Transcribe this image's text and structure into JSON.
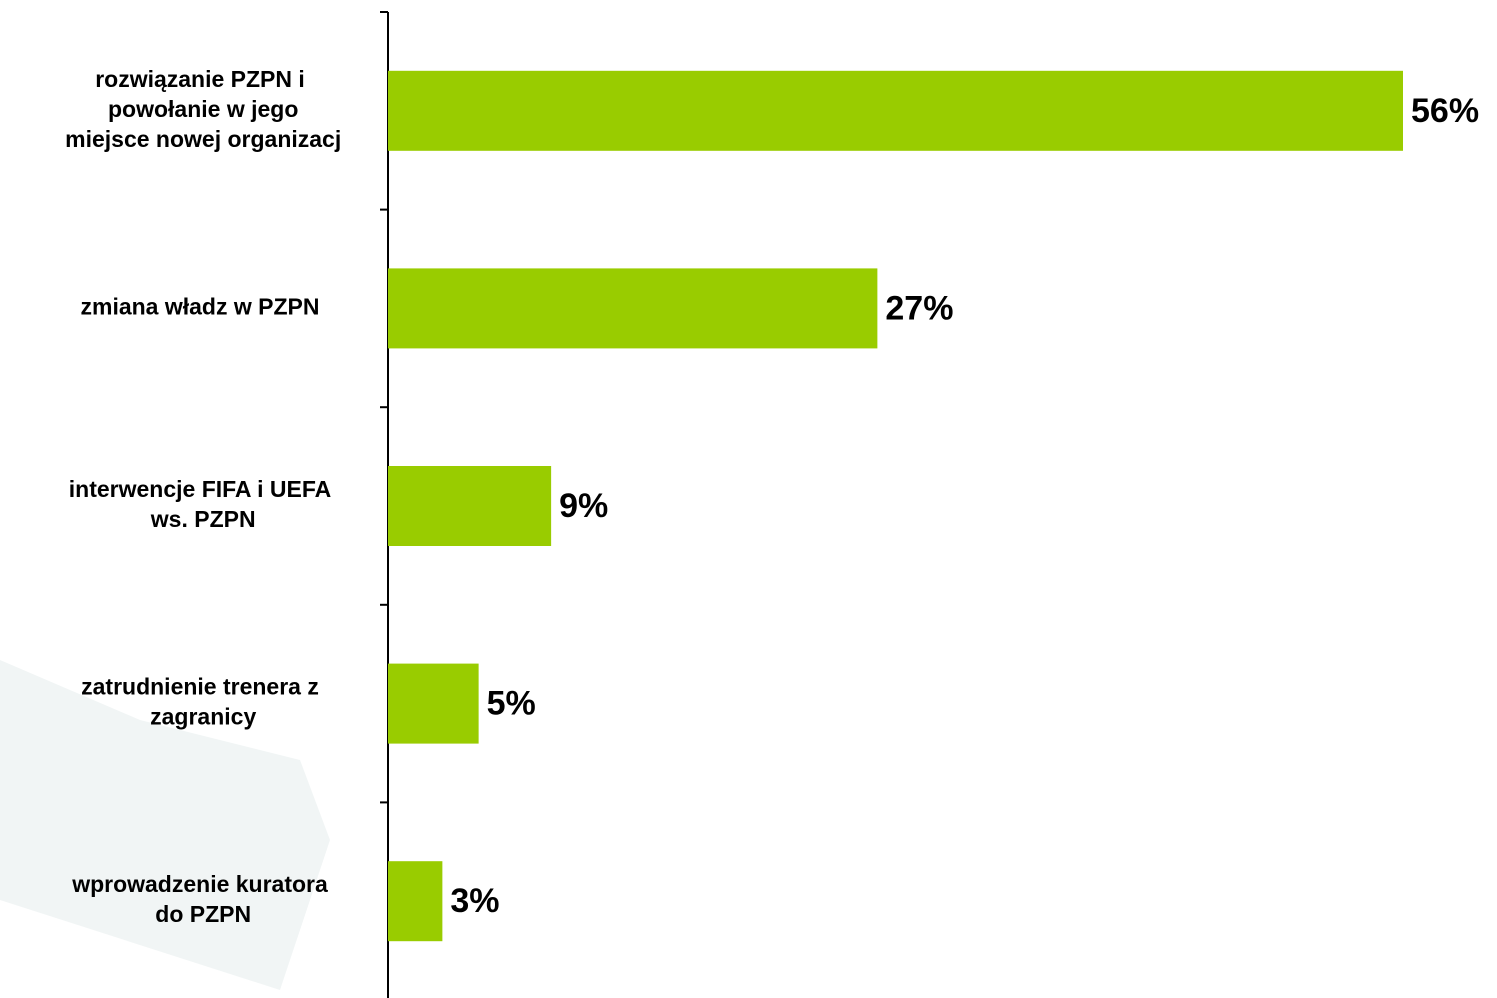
{
  "chart_data": {
    "type": "bar",
    "orientation": "horizontal",
    "categories": [
      "rozwiązanie PZPN i\npowołanie w jego\nmiejsce nowej organizacj",
      "zmiana władz w PZPN",
      "interwencje FIFA i UEFA\nws. PZPN",
      "zatrudnienie trenera z\nzagranicy",
      "wprowadzenie kuratora\ndo PZPN"
    ],
    "values": [
      56,
      27,
      9,
      5,
      3
    ],
    "value_labels": [
      "56%",
      "27%",
      "9%",
      "5%",
      "3%"
    ],
    "color": "#99cc00",
    "xlim": [
      0,
      60
    ]
  }
}
